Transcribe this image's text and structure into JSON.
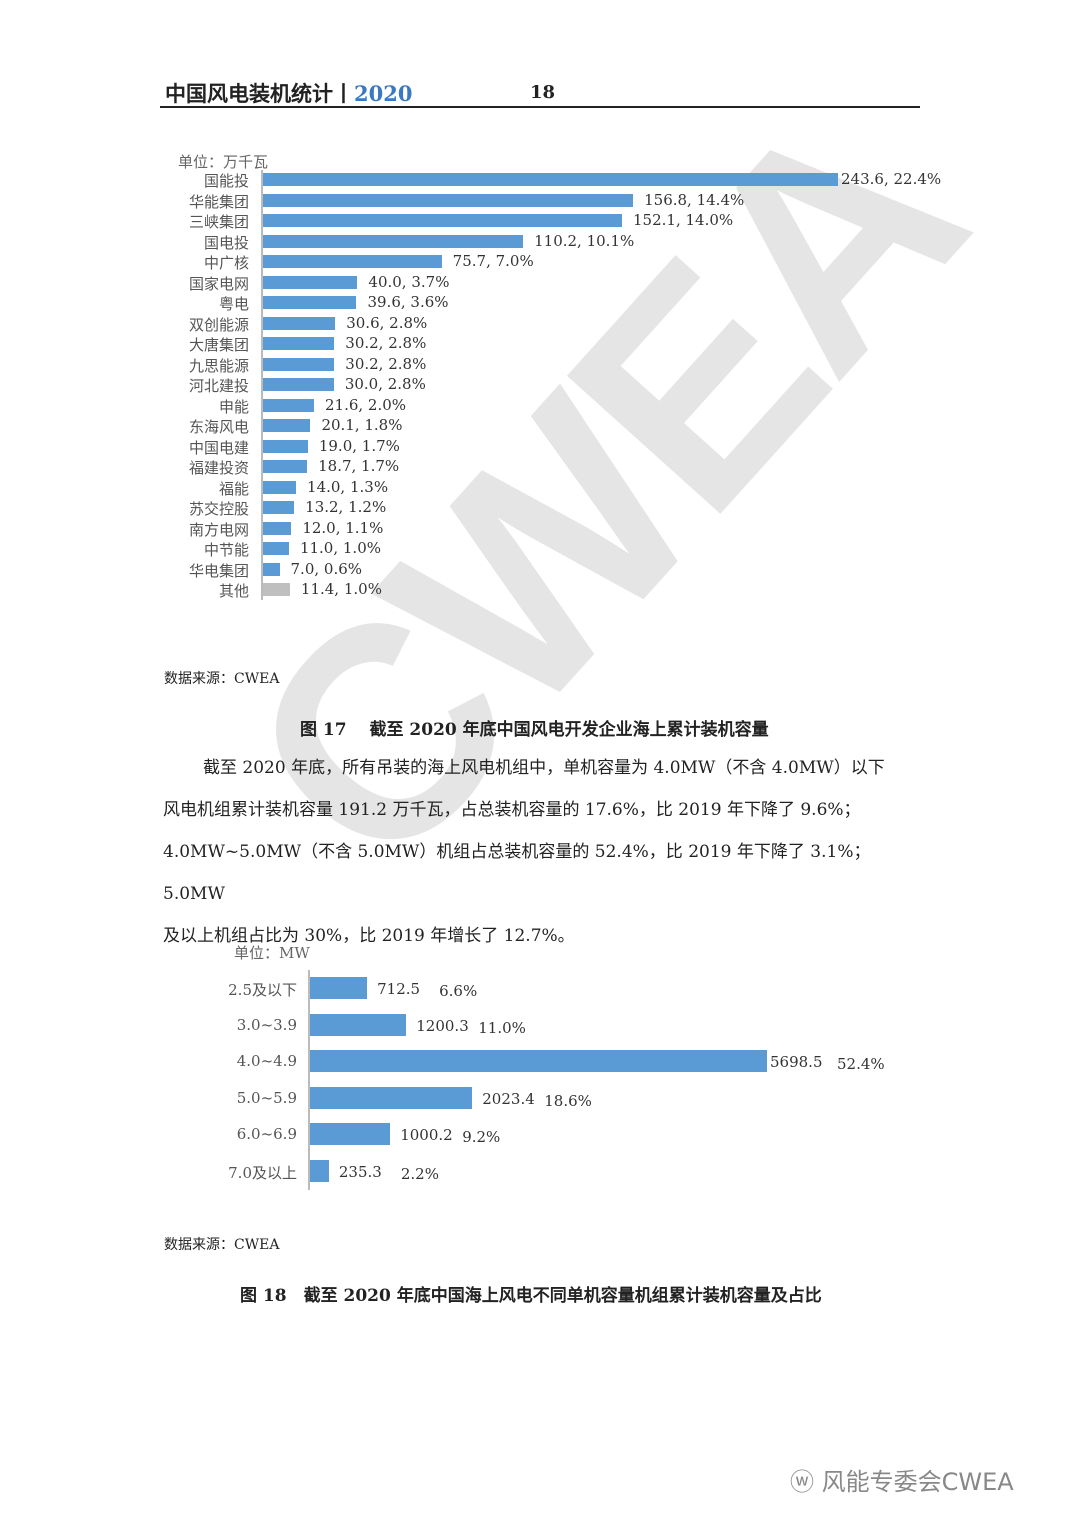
{
  "header": {
    "title": "中国风电装机统计丨",
    "year": "2020",
    "page": "18"
  },
  "watermark": "CWEA",
  "chart_data": [
    {
      "type": "bar",
      "orientation": "horizontal",
      "unit_label": "单位：万千瓦",
      "categories": [
        "国能投",
        "华能集团",
        "三峡集团",
        "国电投",
        "中广核",
        "国家电网",
        "粤电",
        "双创能源",
        "大唐集团",
        "九思能源",
        "河北建投",
        "申能",
        "东海风电",
        "中国电建",
        "福建投资",
        "福能",
        "苏交控股",
        "南方电网",
        "中节能",
        "华电集团",
        "其他"
      ],
      "values": [
        243.6,
        156.8,
        152.1,
        110.2,
        75.7,
        40.0,
        39.6,
        30.6,
        30.2,
        30.2,
        30.0,
        21.6,
        20.1,
        19.0,
        18.7,
        14.0,
        13.2,
        12.0,
        11.0,
        7.0,
        11.4
      ],
      "labels": [
        "243.6, 22.4%",
        "156.8, 14.4%",
        "152.1, 14.0%",
        "110.2, 10.1%",
        "75.7, 7.0%",
        "40.0, 3.7%",
        "39.6, 3.6%",
        "30.6, 2.8%",
        "30.2, 2.8%",
        "30.2, 2.8%",
        "30.0, 2.8%",
        "21.6, 2.0%",
        "20.1, 1.8%",
        "19.0, 1.7%",
        "18.7, 1.7%",
        "14.0, 1.3%",
        "13.2, 1.2%",
        "12.0, 1.1%",
        "11.0, 1.0%",
        "7.0, 0.6%",
        "11.4, 1.0%"
      ],
      "colors": {
        "bar": "#5b9bd5",
        "other": "#bfbfbf"
      },
      "source": "数据来源：CWEA",
      "caption": "图 17　 截至 2020 年底中国风电开发企业海上累计装机容量"
    },
    {
      "type": "bar",
      "orientation": "horizontal",
      "unit_label": "单位：MW",
      "categories": [
        "2.5及以下",
        "3.0~3.9",
        "4.0~4.9",
        "5.0~5.9",
        "6.0~6.9",
        "7.0及以上"
      ],
      "values": [
        712.5,
        1200.3,
        5698.5,
        2023.4,
        1000.2,
        235.3
      ],
      "value_labels": [
        "712.5",
        "1200.3",
        "5698.5",
        "2023.4",
        "1000.2",
        "235.3"
      ],
      "percents": [
        "6.6%",
        "11.0%",
        "52.4%",
        "18.6%",
        "9.2%",
        "2.2%"
      ],
      "colors": {
        "bar": "#5b9bd5"
      },
      "source": "数据来源：CWEA",
      "caption": "图 18　截至 2020 年底中国海上风电不同单机容量机组累计装机容量及占比"
    }
  ],
  "paragraph": {
    "lines": [
      "截至 2020 年底，所有吊装的海上风电机组中，单机容量为 4.0MW（不含 4.0MW）以下",
      "风电机组累计装机容量 191.2 万千瓦，占总装机容量的 17.6%，比 2019 年下降了 9.6%；",
      "4.0MW~5.0MW（不含 5.0MW）机组占总装机容量的 52.4%，比 2019 年下降了 3.1%；5.0MW",
      "及以上机组占比为 30%，比 2019 年增长了 12.7%。"
    ]
  },
  "footer": {
    "account": "风能专委会CWEA"
  }
}
